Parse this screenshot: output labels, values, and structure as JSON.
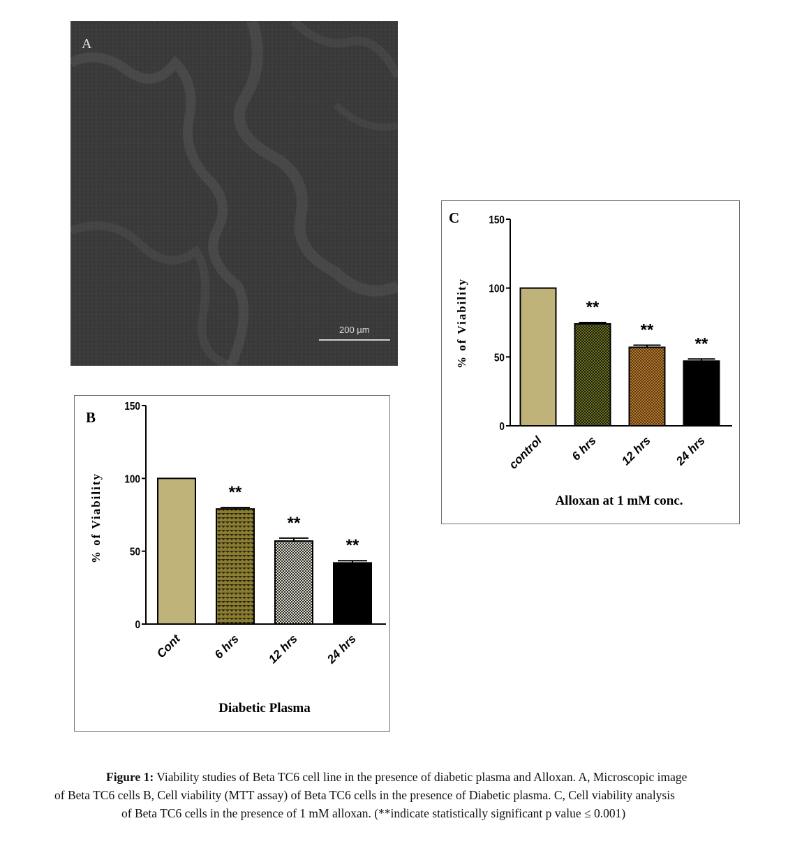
{
  "panel_a": {
    "letter": "A",
    "scale_label": "200 µm"
  },
  "chart_data": [
    {
      "type": "bar",
      "panel_letter": "B",
      "categories": [
        "Cont",
        "6 hrs",
        "12 hrs",
        "24 hrs"
      ],
      "values": [
        100,
        79,
        57,
        42
      ],
      "errors": [
        0,
        1,
        2,
        1.5
      ],
      "significance": [
        "",
        "**",
        "**",
        "**"
      ],
      "colors": [
        "#bfb37a",
        "#7a6e2c",
        "#8a8a82",
        "#000000"
      ],
      "patterns": [
        "none",
        "dots-dark",
        "checker-light",
        "none"
      ],
      "xlabel": "Diabetic Plasma",
      "ylabel": "% of Viability",
      "ylim": [
        0,
        150
      ],
      "yticks": [
        0,
        50,
        100,
        150
      ],
      "grid": false
    },
    {
      "type": "bar",
      "panel_letter": "C",
      "categories": [
        "control",
        "6 hrs",
        "12 hrs",
        "24 hrs"
      ],
      "values": [
        100,
        74,
        57,
        47
      ],
      "errors": [
        0,
        1,
        1.5,
        1.5
      ],
      "significance": [
        "",
        "**",
        "**",
        "**"
      ],
      "colors": [
        "#bfb37a",
        "#4e5218",
        "#9a6a2a",
        "#000000"
      ],
      "patterns": [
        "none",
        "checker-dark",
        "checker-brown",
        "none"
      ],
      "xlabel": "Alloxan at 1 mM conc.",
      "ylabel": "% of Viability",
      "ylim": [
        0,
        150
      ],
      "yticks": [
        0,
        50,
        100,
        150
      ],
      "grid": false
    }
  ],
  "caption": {
    "label": "Figure 1:",
    "line1": " Viability studies of Beta TC6 cell line in the presence of diabetic plasma and Alloxan. A, Microscopic image",
    "line2": "of Beta TC6 cells B, Cell viability (MTT assay) of Beta TC6 cells in the presence of Diabetic plasma.  C, Cell viability analysis",
    "line3": "of Beta TC6 cells in the presence of 1 mM alloxan.  (**indicate statistically significant p value ≤ 0.001)"
  }
}
